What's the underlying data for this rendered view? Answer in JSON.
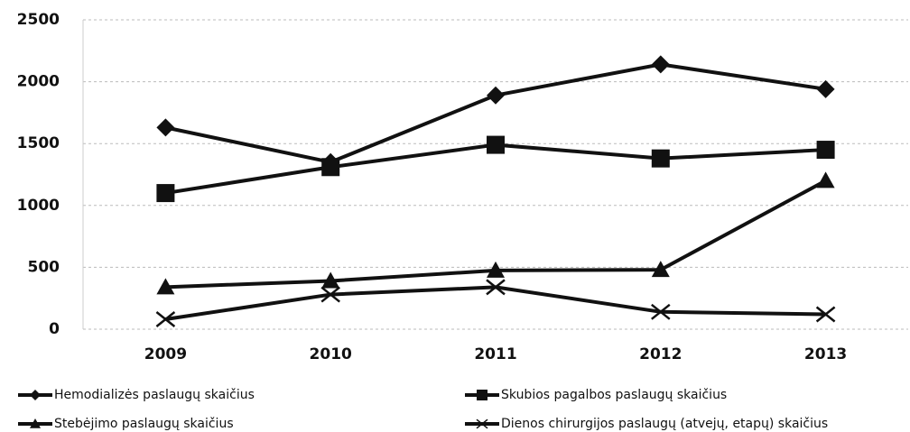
{
  "chart_data": {
    "type": "line",
    "categories": [
      "2009",
      "2010",
      "2011",
      "2012",
      "2013"
    ],
    "series": [
      {
        "name": "Hemodializės paslaugų skaičius",
        "color": "#111111",
        "marker": "diamond",
        "values": [
          1630,
          1350,
          1890,
          2140,
          1940
        ]
      },
      {
        "name": "Skubios pagalbos paslaugų skaičius",
        "color": "#111111",
        "marker": "square",
        "values": [
          1100,
          1310,
          1490,
          1380,
          1450
        ]
      },
      {
        "name": "Stebėjimo paslaugų skaičius",
        "color": "#111111",
        "marker": "triangle",
        "values": [
          340,
          390,
          475,
          480,
          1200
        ]
      },
      {
        "name": "Dienos chirurgijos paslaugų (atvejų, etapų) skaičius",
        "color": "#111111",
        "marker": "x",
        "values": [
          80,
          280,
          340,
          140,
          120
        ]
      }
    ],
    "ylim": [
      0,
      2500
    ],
    "yticks": [
      0,
      500,
      1000,
      1500,
      2000,
      2500
    ],
    "grid": true
  }
}
